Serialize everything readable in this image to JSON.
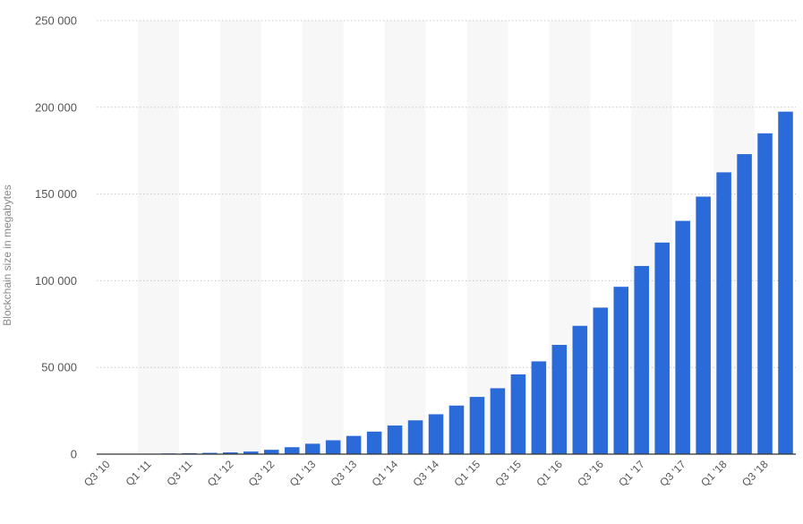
{
  "chart_data": {
    "type": "bar",
    "ylabel": "Blockchain size in megabytes",
    "xlabel": "",
    "ylim": [
      0,
      250000
    ],
    "yticks": [
      0,
      50000,
      100000,
      150000,
      200000,
      250000
    ],
    "ytick_labels": [
      "0",
      "50 000",
      "100 000",
      "150 000",
      "200 000",
      "250 000"
    ],
    "grid": true,
    "bar_color": "#2b6ad9",
    "categories": [
      "Q3 '10",
      "Q4 '10",
      "Q1 '11",
      "Q2 '11",
      "Q3 '11",
      "Q4 '11",
      "Q1 '12",
      "Q2 '12",
      "Q3 '12",
      "Q4 '12",
      "Q1 '13",
      "Q2 '13",
      "Q3 '13",
      "Q4 '13",
      "Q1 '14",
      "Q2 '14",
      "Q3 '14",
      "Q4 '14",
      "Q1 '15",
      "Q2 '15",
      "Q3 '15",
      "Q4 '15",
      "Q1 '16",
      "Q2 '16",
      "Q3 '16",
      "Q4 '16",
      "Q1 '17",
      "Q2 '17",
      "Q3 '17",
      "Q4 '17",
      "Q1 '18",
      "Q2 '18",
      "Q3 '18",
      "Q4 '18"
    ],
    "x_labels_shown": [
      "Q3 '10",
      "Q1 '11",
      "Q3 '11",
      "Q1 '12",
      "Q3 '12",
      "Q1 '13",
      "Q3 '13",
      "Q1 '14",
      "Q3 '14",
      "Q1 '15",
      "Q3 '15",
      "Q1 '16",
      "Q3 '16",
      "Q1 '17",
      "Q3 '17",
      "Q1 '18",
      "Q3 '18"
    ],
    "values": [
      30,
      100,
      200,
      400,
      550,
      750,
      1000,
      1500,
      2500,
      4000,
      6000,
      8000,
      10500,
      13000,
      16500,
      19500,
      23000,
      28000,
      33000,
      38000,
      46000,
      53500,
      63000,
      74000,
      84500,
      96500,
      108500,
      122000,
      134500,
      148500,
      162500,
      173000,
      185000,
      197500
    ]
  }
}
